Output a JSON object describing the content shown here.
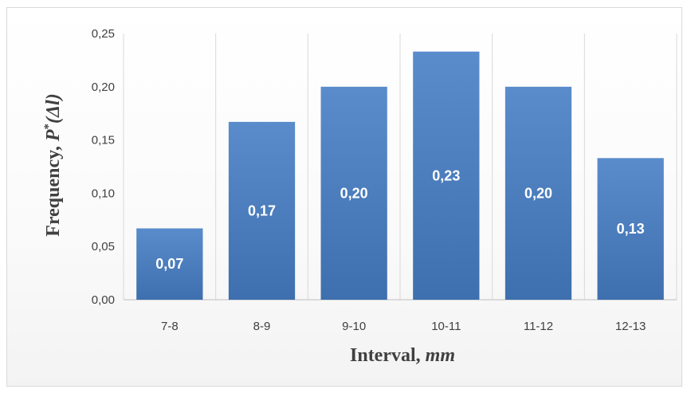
{
  "chart_data": {
    "type": "bar",
    "categories": [
      "7-8",
      "8-9",
      "9-10",
      "10-11",
      "11-12",
      "12-13"
    ],
    "values": [
      0.067,
      0.167,
      0.2,
      0.233,
      0.2,
      0.133
    ],
    "data_labels": [
      "0,07",
      "0,17",
      "0,20",
      "0,23",
      "0,20",
      "0,13"
    ],
    "yticks": [
      "0,00",
      "0,05",
      "0,10",
      "0,15",
      "0,20",
      "0,25"
    ],
    "ylim": [
      0,
      0.25
    ],
    "xlabel": {
      "main": "Interval, ",
      "unit": "mm"
    },
    "ylabel": {
      "main": "Frequency, ",
      "symbol": "P",
      "sup": "*",
      "arg": "(Δl)"
    },
    "bar_color": "#4f81bd",
    "grid": "vertical",
    "legend": "none"
  }
}
